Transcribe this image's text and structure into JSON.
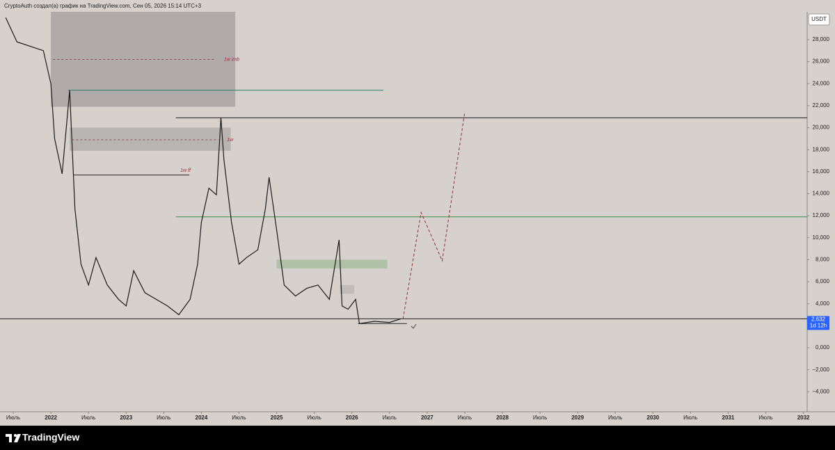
{
  "header": {
    "title": "CryptoAuth создал(а) график на TradingView.com, Сен 05, 2026 15:14 UTC+3",
    "currency": "USDT"
  },
  "footer": {
    "brand": "TradingView"
  },
  "chart_data": {
    "type": "line",
    "color": "#1a1a1a",
    "xlim": [
      2021.324,
      2032.05
    ],
    "ylim": [
      -5815,
      30528
    ],
    "xticks": [
      {
        "value": 2021.5,
        "label": "Июль"
      },
      {
        "value": 2022,
        "label": "2022"
      },
      {
        "value": 2022.5,
        "label": "Июль"
      },
      {
        "value": 2023,
        "label": "2023"
      },
      {
        "value": 2023.5,
        "label": "Июль"
      },
      {
        "value": 2024,
        "label": "2024"
      },
      {
        "value": 2024.5,
        "label": "Июль"
      },
      {
        "value": 2025,
        "label": "2025"
      },
      {
        "value": 2025.5,
        "label": "Июль"
      },
      {
        "value": 2026,
        "label": "2026"
      },
      {
        "value": 2026.5,
        "label": "Июль"
      },
      {
        "value": 2027,
        "label": "2027"
      },
      {
        "value": 2027.5,
        "label": "Июль"
      },
      {
        "value": 2028,
        "label": "2028"
      },
      {
        "value": 2028.5,
        "label": "Июль"
      },
      {
        "value": 2029,
        "label": "2029"
      },
      {
        "value": 2029.5,
        "label": "Июль"
      },
      {
        "value": 2030,
        "label": "2030"
      },
      {
        "value": 2030.5,
        "label": "Июль"
      },
      {
        "value": 2031,
        "label": "2031"
      },
      {
        "value": 2031.5,
        "label": "Июль"
      },
      {
        "value": 2032,
        "label": "2032"
      }
    ],
    "yticks": [
      {
        "value": -4000,
        "label": "−4,000"
      },
      {
        "value": -2000,
        "label": "−2,000"
      },
      {
        "value": 0,
        "label": "0,000"
      },
      {
        "value": 2000,
        "label": "2,000"
      },
      {
        "value": 4000,
        "label": "4,000"
      },
      {
        "value": 6000,
        "label": "6,000"
      },
      {
        "value": 8000,
        "label": "8,000"
      },
      {
        "value": 10000,
        "label": "10,000"
      },
      {
        "value": 12000,
        "label": "12,000"
      },
      {
        "value": 14000,
        "label": "14,000"
      },
      {
        "value": 16000,
        "label": "16,000"
      },
      {
        "value": 18000,
        "label": "18,000"
      },
      {
        "value": 20000,
        "label": "20,000"
      },
      {
        "value": 22000,
        "label": "22,000"
      },
      {
        "value": 24000,
        "label": "24,000"
      },
      {
        "value": 26000,
        "label": "26,000"
      },
      {
        "value": 28000,
        "label": "28,000"
      }
    ],
    "x": [
      2021.4,
      2021.55,
      2021.9,
      2022.0,
      2022.05,
      2022.15,
      2022.25,
      2022.32,
      2022.4,
      2022.5,
      2022.6,
      2022.75,
      2022.9,
      2023.0,
      2023.1,
      2023.25,
      2023.4,
      2023.55,
      2023.7,
      2023.85,
      2023.95,
      2024.0,
      2024.1,
      2024.2,
      2024.26,
      2024.3,
      2024.4,
      2024.5,
      2024.6,
      2024.75,
      2024.85,
      2024.9,
      2025.0,
      2025.05,
      2025.1,
      2025.25,
      2025.4,
      2025.55,
      2025.7,
      2025.83,
      2025.87,
      2025.95,
      2026.05,
      2026.1,
      2026.3,
      2026.5,
      2026.65
    ],
    "values": [
      30000,
      27800,
      27000,
      24000,
      19000,
      15800,
      23400,
      12600,
      7600,
      5700,
      8200,
      5700,
      4400,
      3800,
      7000,
      5000,
      4400,
      3800,
      3000,
      4400,
      7600,
      11400,
      14500,
      13900,
      20900,
      17100,
      11400,
      7600,
      8200,
      8900,
      12600,
      15500,
      10700,
      8200,
      5700,
      4700,
      5400,
      5700,
      4400,
      9800,
      3800,
      3500,
      4400,
      2200,
      2400,
      2300,
      2630
    ],
    "last_price": {
      "value": 2632,
      "label": "2,632"
    },
    "last_price_timer": "1d 12h",
    "forecast": {
      "color": "#8b2c3a",
      "x": [
        2026.68,
        2026.92,
        2027.2,
        2027.5
      ],
      "values": [
        2632,
        12300,
        7900,
        21400
      ]
    },
    "levels": [
      {
        "value": 20900,
        "from": 2023.66,
        "to": 2032.05,
        "color": "#222222"
      },
      {
        "value": 11900,
        "from": 2023.66,
        "to": 2032.05,
        "color": "#3f8f4a"
      },
      {
        "value": 23400,
        "from": 2022.23,
        "to": 2026.42,
        "color": "#2a7d6b"
      },
      {
        "value": 15700,
        "from": 2022.3,
        "to": 2023.84,
        "color": "#222222"
      },
      {
        "value": 2200,
        "from": 2026.08,
        "to": 2026.73,
        "color": "#222222"
      },
      {
        "value": 2632,
        "from": 2021.324,
        "to": 2032.05,
        "color": "#222222"
      }
    ],
    "zones": [
      {
        "from": 2022.0,
        "to": 2024.45,
        "low": 21900,
        "high": 30528,
        "color": "#a9a5a3"
      },
      {
        "from": 2022.25,
        "to": 2024.39,
        "low": 17900,
        "high": 20000,
        "color": "#b3afac"
      },
      {
        "from": 2025.0,
        "to": 2026.47,
        "low": 7200,
        "high": 8000,
        "color": "#a8bfa0"
      },
      {
        "from": 2025.84,
        "to": 2026.03,
        "low": 4900,
        "high": 5700,
        "color": "#bcb8b5"
      }
    ],
    "annotations": [
      {
        "text": "1w imb",
        "x": 2024.3,
        "y": 26200,
        "line_from": 2022.03
      },
      {
        "text": "1w",
        "x": 2024.34,
        "y": 18900,
        "line_from": 2022.28
      },
      {
        "text": "1w ff",
        "x": 2023.72,
        "y": 16100
      }
    ]
  }
}
